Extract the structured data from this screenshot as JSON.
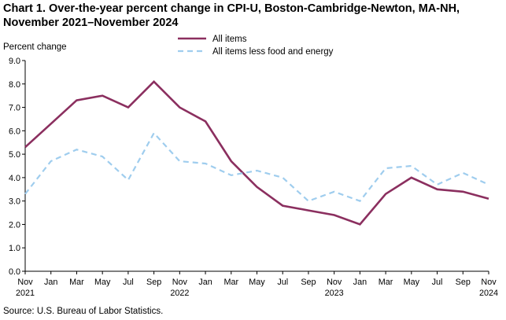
{
  "chart_data": {
    "type": "line",
    "title_line1": "Chart 1. Over-the-year percent change in CPI-U, Boston-Cambridge-Newton, MA-NH,",
    "title_line2": "November 2021–November 2024",
    "ylabel": "Percent change",
    "ylim": [
      0.0,
      9.0
    ],
    "yticks": [
      "0.0",
      "1.0",
      "2.0",
      "3.0",
      "4.0",
      "5.0",
      "6.0",
      "7.0",
      "8.0",
      "9.0"
    ],
    "x_month_labels": [
      "Nov",
      "Jan",
      "Mar",
      "May",
      "Jul",
      "Sep",
      "Nov",
      "Jan",
      "Mar",
      "May",
      "Jul",
      "Sep",
      "Nov",
      "Jan",
      "Mar",
      "May",
      "Jul",
      "Sep",
      "Nov"
    ],
    "x_year_labels": [
      {
        "index": 0,
        "label": "2021"
      },
      {
        "index": 6,
        "label": "2022"
      },
      {
        "index": 12,
        "label": "2023"
      },
      {
        "index": 18,
        "label": "2024"
      }
    ],
    "series": [
      {
        "name": "All items",
        "color": "#8b2f5f",
        "style": "solid",
        "values": [
          5.3,
          6.3,
          7.3,
          7.5,
          7.0,
          8.1,
          7.0,
          6.4,
          4.7,
          3.6,
          2.8,
          2.6,
          2.4,
          2.0,
          3.3,
          4.0,
          3.5,
          3.4,
          3.1
        ]
      },
      {
        "name": "All items less food and energy",
        "color": "#9fcdee",
        "style": "dashed",
        "values": [
          3.3,
          4.7,
          5.2,
          4.9,
          3.9,
          5.9,
          4.7,
          4.6,
          4.1,
          4.3,
          4.0,
          3.0,
          3.4,
          3.0,
          4.4,
          4.5,
          3.7,
          4.2,
          3.7
        ]
      }
    ],
    "legend_position": "top-center",
    "source": "Source: U.S. Bureau of Labor Statistics."
  }
}
